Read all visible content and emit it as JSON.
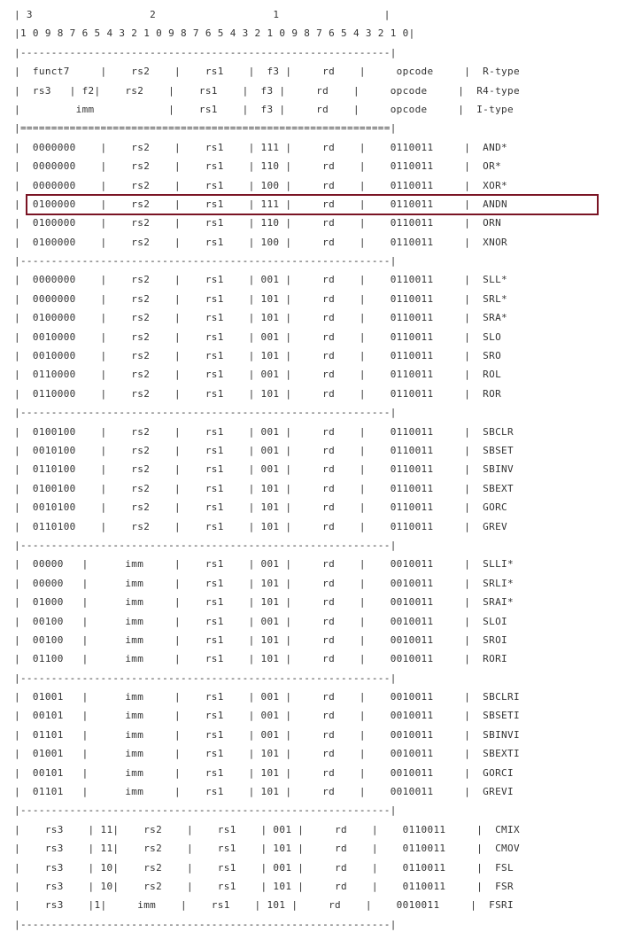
{
  "header_lines": [
    "| 3                   2                   1                 |",
    "|1 0 9 8 7 6 5 4 3 2 1 0 9 8 7 6 5 4 3 2 1 0 9 8 7 6 5 4 3 2 1 0|"
  ],
  "groups": [
    {
      "rows": [
        "|  funct7     |    rs2    |    rs1    |  f3 |     rd    |     opcode     |  R-type",
        "|  rs3   | f2|    rs2    |    rs1    |  f3 |     rd    |     opcode     |  R4-type",
        "|         imm            |    rs1    |  f3 |     rd    |     opcode     |  I-type"
      ]
    },
    {
      "rows": [
        "|  0000000    |    rs2    |    rs1    | 111 |     rd    |    0110011     |  AND*",
        "|  0000000    |    rs2    |    rs1    | 110 |     rd    |    0110011     |  OR*",
        "|  0000000    |    rs2    |    rs1    | 100 |     rd    |    0110011     |  XOR*",
        "|  0100000    |    rs2    |    rs1    | 111 |     rd    |    0110011     |  ANDN",
        "|  0100000    |    rs2    |    rs1    | 110 |     rd    |    0110011     |  ORN",
        "|  0100000    |    rs2    |    rs1    | 100 |     rd    |    0110011     |  XNOR"
      ]
    },
    {
      "rows": [
        "|  0000000    |    rs2    |    rs1    | 001 |     rd    |    0110011     |  SLL*",
        "|  0000000    |    rs2    |    rs1    | 101 |     rd    |    0110011     |  SRL*",
        "|  0100000    |    rs2    |    rs1    | 101 |     rd    |    0110011     |  SRA*",
        "|  0010000    |    rs2    |    rs1    | 001 |     rd    |    0110011     |  SLO",
        "|  0010000    |    rs2    |    rs1    | 101 |     rd    |    0110011     |  SRO",
        "|  0110000    |    rs2    |    rs1    | 001 |     rd    |    0110011     |  ROL",
        "|  0110000    |    rs2    |    rs1    | 101 |     rd    |    0110011     |  ROR"
      ]
    },
    {
      "rows": [
        "|  0100100    |    rs2    |    rs1    | 001 |     rd    |    0110011     |  SBCLR",
        "|  0010100    |    rs2    |    rs1    | 001 |     rd    |    0110011     |  SBSET",
        "|  0110100    |    rs2    |    rs1    | 001 |     rd    |    0110011     |  SBINV",
        "|  0100100    |    rs2    |    rs1    | 101 |     rd    |    0110011     |  SBEXT",
        "|  0010100    |    rs2    |    rs1    | 101 |     rd    |    0110011     |  GORC",
        "|  0110100    |    rs2    |    rs1    | 101 |     rd    |    0110011     |  GREV"
      ]
    },
    {
      "rows": [
        "|  00000   |      imm     |    rs1    | 001 |     rd    |    0010011     |  SLLI*",
        "|  00000   |      imm     |    rs1    | 101 |     rd    |    0010011     |  SRLI*",
        "|  01000   |      imm     |    rs1    | 101 |     rd    |    0010011     |  SRAI*",
        "|  00100   |      imm     |    rs1    | 001 |     rd    |    0010011     |  SLOI",
        "|  00100   |      imm     |    rs1    | 101 |     rd    |    0010011     |  SROI",
        "|  01100   |      imm     |    rs1    | 101 |     rd    |    0010011     |  RORI"
      ]
    },
    {
      "rows": [
        "|  01001   |      imm     |    rs1    | 001 |     rd    |    0010011     |  SBCLRI",
        "|  00101   |      imm     |    rs1    | 001 |     rd    |    0010011     |  SBSETI",
        "|  01101   |      imm     |    rs1    | 001 |     rd    |    0010011     |  SBINVI",
        "|  01001   |      imm     |    rs1    | 101 |     rd    |    0010011     |  SBEXTI",
        "|  00101   |      imm     |    rs1    | 101 |     rd    |    0010011     |  GORCI",
        "|  01101   |      imm     |    rs1    | 101 |     rd    |    0010011     |  GREVI"
      ]
    },
    {
      "rows": [
        "|    rs3    | 11|    rs2    |    rs1    | 001 |     rd    |    0110011     |  CMIX",
        "|    rs3    | 11|    rs2    |    rs1    | 101 |     rd    |    0110011     |  CMOV",
        "|    rs3    | 10|    rs2    |    rs1    | 001 |     rd    |    0110011     |  FSL",
        "|    rs3    | 10|    rs2    |    rs1    | 101 |     rd    |    0110011     |  FSR",
        "|    rs3    |1|     imm    |    rs1    | 101 |     rd    |    0010011     |  FSRI"
      ]
    }
  ],
  "separators": {
    "top": "|------------------------------------------------------------|",
    "header": "|============================================================|",
    "dashed": "|------------------------------------------------------------|"
  },
  "highlight_row_label": "ANDN"
}
